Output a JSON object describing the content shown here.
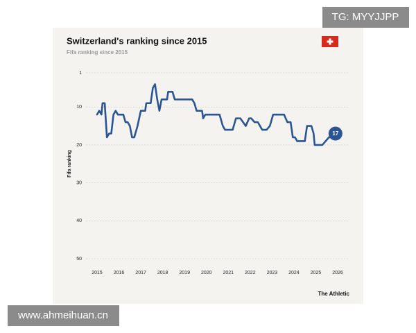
{
  "chart_data": {
    "type": "line",
    "title": "Switzerland's ranking since 2015",
    "subtitle": "Fifa ranking since 2015",
    "y_label": "Fifa ranking",
    "source": "The Athletic",
    "x": [
      2015.0,
      2015.1,
      2015.2,
      2015.25,
      2015.35,
      2015.45,
      2015.55,
      2015.65,
      2015.75,
      2015.85,
      2015.95,
      2016.2,
      2016.3,
      2016.4,
      2016.5,
      2016.6,
      2016.7,
      2016.85,
      2017.0,
      2017.2,
      2017.25,
      2017.45,
      2017.55,
      2017.65,
      2017.75,
      2017.85,
      2017.95,
      2018.2,
      2018.25,
      2018.45,
      2018.55,
      2018.9,
      2019.35,
      2019.45,
      2019.55,
      2019.8,
      2019.85,
      2019.95,
      2020.6,
      2020.75,
      2020.85,
      2021.2,
      2021.35,
      2021.55,
      2021.8,
      2021.95,
      2022.05,
      2022.2,
      2022.35,
      2022.55,
      2022.75,
      2022.9,
      2023.05,
      2023.55,
      2023.7,
      2023.85,
      2023.95,
      2024.05,
      2024.15,
      2024.5,
      2024.6,
      2024.8,
      2024.9,
      2024.95,
      2025.3,
      2025.45,
      2025.6,
      2025.65,
      2025.9
    ],
    "series": [
      {
        "name": "Switzerland",
        "color": "#2a5592",
        "values": [
          12,
          11,
          12,
          9,
          9,
          18,
          17,
          17,
          12,
          11,
          12,
          12,
          14,
          14,
          15,
          18,
          18,
          15,
          11,
          11,
          9,
          9,
          5,
          4,
          8,
          11,
          8,
          8,
          6,
          6,
          8,
          8,
          8,
          9,
          11,
          11,
          13,
          12,
          12,
          15,
          16,
          16,
          13,
          13,
          15,
          13,
          13,
          14,
          14,
          16,
          16,
          15,
          12,
          12,
          14,
          14,
          18,
          18,
          19,
          19,
          15,
          15,
          17,
          20,
          20,
          19,
          18,
          18,
          17
        ]
      }
    ],
    "xlim": [
      2015,
      2026
    ],
    "ylim": [
      1,
      50
    ],
    "y_inverted": true,
    "xticks": [
      2015,
      2016,
      2017,
      2018,
      2019,
      2020,
      2021,
      2022,
      2023,
      2024,
      2025,
      2026
    ],
    "yticks": [
      1,
      10,
      20,
      30,
      40,
      50
    ],
    "grid": true
  },
  "watermarks": [
    "TG: MYYJJPP",
    "www.ahmeihuan.cn"
  ]
}
